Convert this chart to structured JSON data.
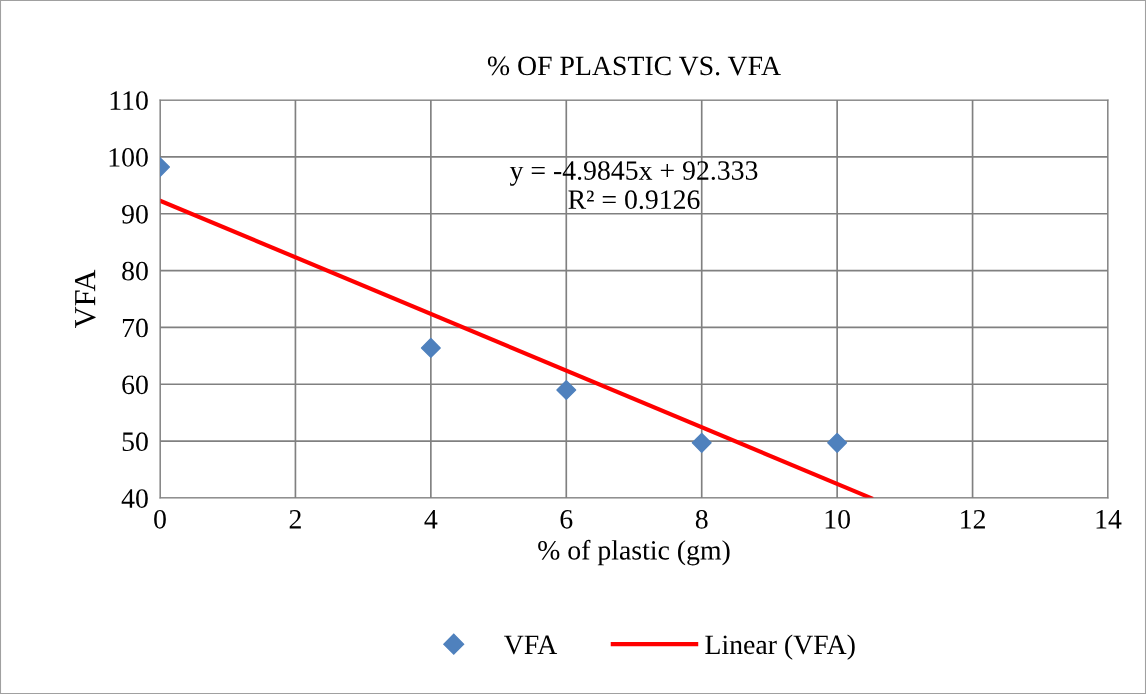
{
  "chart_data": {
    "type": "scatter",
    "title": "% OF PLASTIC VS. VFA",
    "xlabel": "% of plastic (gm)",
    "ylabel": "VFA",
    "x": [
      0,
      4,
      6,
      8,
      10
    ],
    "series": [
      {
        "name": "VFA",
        "color": "#4f81bd",
        "marker": "diamond",
        "values": [
          98.2,
          66.4,
          59.0,
          49.7,
          49.7
        ]
      },
      {
        "name": "Linear (VFA)",
        "type": "line",
        "color": "#ff0000",
        "marker": "none",
        "line_style": "solid",
        "x": [
          0,
          10.5
        ],
        "values": [
          92.3,
          40.0
        ]
      }
    ],
    "xlim": [
      0,
      14
    ],
    "xticks": [
      0,
      2,
      4,
      6,
      8,
      10,
      12,
      14
    ],
    "ylim": [
      40,
      110
    ],
    "yticks": [
      40,
      50,
      60,
      70,
      80,
      90,
      100,
      110
    ],
    "grid": true,
    "legend": "bottom",
    "annotations": [
      "y = -4.9845x + 92.333\nR² = 0.9126"
    ]
  }
}
